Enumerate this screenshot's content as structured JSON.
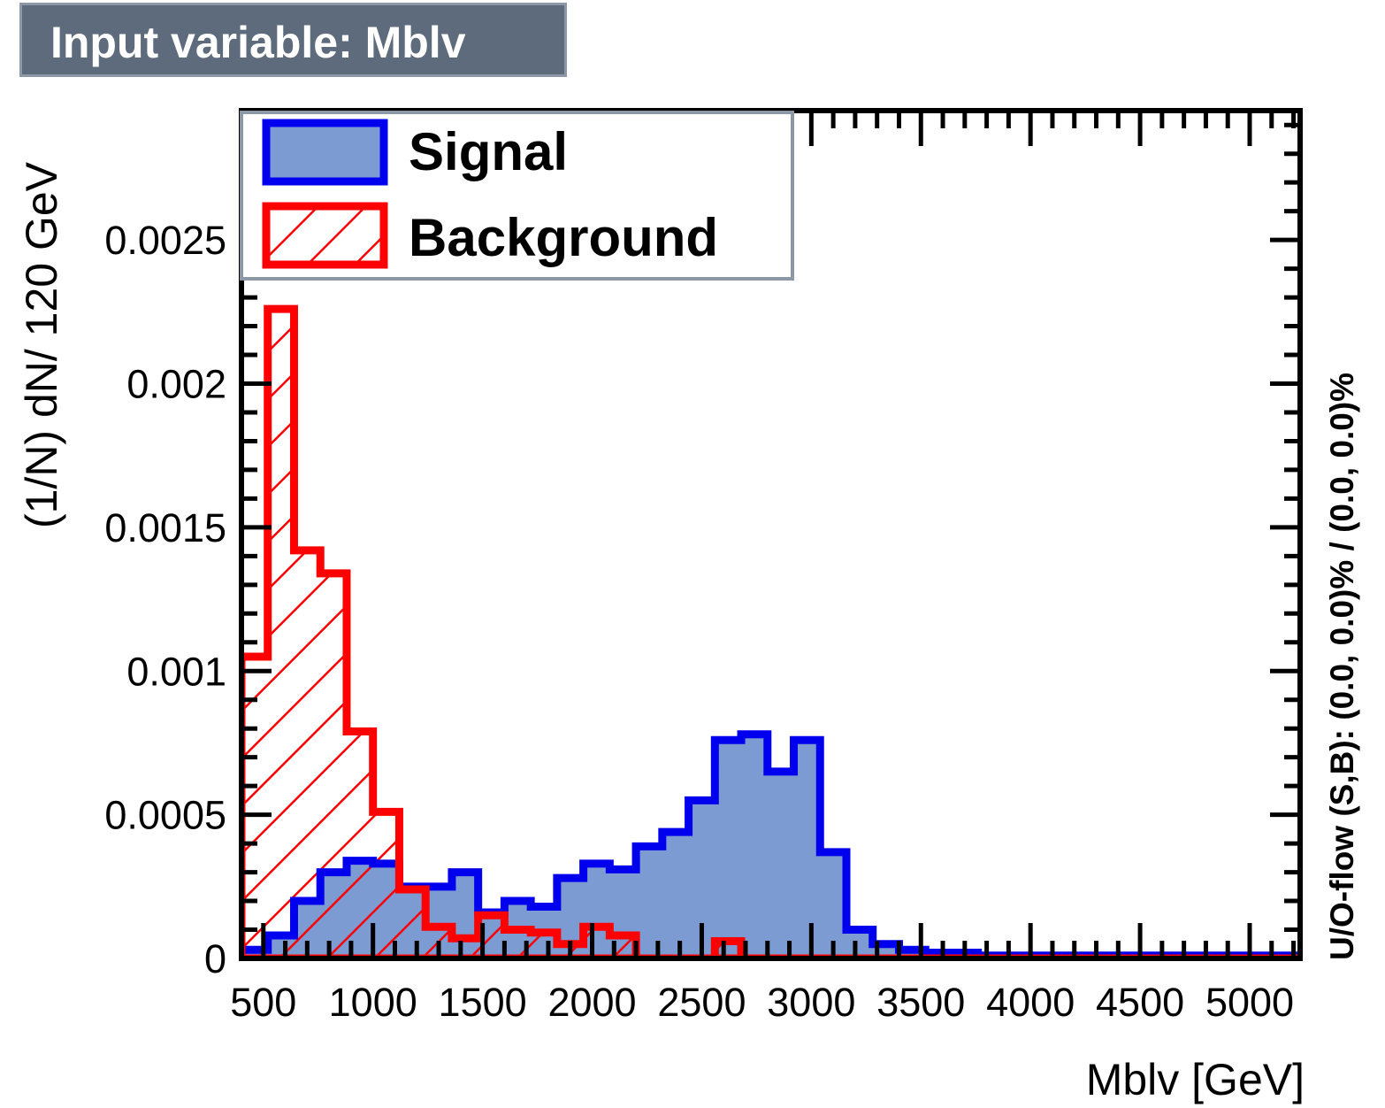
{
  "title": "Input variable: Mblv",
  "colors": {
    "signal_line": "#0000ee",
    "signal_fill": "#7b9bd2",
    "background_line": "#ff0000",
    "title_bg": "#5e6b7d"
  },
  "chart_data": {
    "type": "bar",
    "histogram": true,
    "xlabel": "Mblv  [GeV]",
    "ylabel": "(1/N) dN/ 120 GeV",
    "side_label": "U/O-flow (S,B): (0.0, 0.0)% / (0.0, 0.0)%",
    "xlim": [
      400,
      5230
    ],
    "ylim": [
      0,
      0.00295
    ],
    "bin_width": 120,
    "x_ticks": [
      500,
      1000,
      1500,
      2000,
      2500,
      3000,
      3500,
      4000,
      4500,
      5000
    ],
    "x_tick_labels": [
      "500",
      "1000",
      "1500",
      "2000",
      "2500",
      "3000",
      "3500",
      "4000",
      "4500",
      "5000"
    ],
    "y_ticks": [
      0,
      0.0005,
      0.001,
      0.0015,
      0.002,
      0.0025
    ],
    "y_tick_labels": [
      "0",
      "0.0005",
      "0.001",
      "0.0015",
      "0.002",
      "0.0025"
    ],
    "legend_position": "top-left",
    "series": [
      {
        "name": "Signal",
        "style": "filled",
        "edges": [
          400,
          520,
          640,
          760,
          880,
          1000,
          1120,
          1240,
          1360,
          1480,
          1600,
          1720,
          1840,
          1960,
          2080,
          2200,
          2320,
          2440,
          2560,
          2680,
          2800,
          2920,
          3040,
          3160,
          3280,
          3400,
          3520,
          3640,
          3760,
          3880,
          4000,
          4120,
          4240,
          4360,
          4480,
          4600,
          4720,
          4840,
          4960,
          5080,
          5230
        ],
        "values": [
          3e-05,
          8e-05,
          0.0002,
          0.0003,
          0.00034,
          0.00033,
          0.00025,
          0.00025,
          0.0003,
          0.00016,
          0.0002,
          0.00018,
          0.00028,
          0.00033,
          0.00031,
          0.00039,
          0.00044,
          0.00055,
          0.00076,
          0.00078,
          0.00065,
          0.00076,
          0.00037,
          0.0001,
          5e-05,
          3e-05,
          2e-05,
          2e-05,
          1e-05,
          1e-05,
          1e-05,
          1e-05,
          1e-05,
          1e-05,
          1e-05,
          1e-05,
          1e-05,
          1e-05,
          1e-05,
          1e-05
        ]
      },
      {
        "name": "Background",
        "style": "hatched",
        "edges": [
          400,
          520,
          640,
          760,
          880,
          1000,
          1120,
          1240,
          1360,
          1480,
          1600,
          1720,
          1840,
          1960,
          2080,
          2200,
          2320,
          2440,
          2560,
          2680,
          2800,
          2920,
          3040,
          3160,
          3280,
          3400,
          3520,
          3640,
          3760,
          3880,
          4000,
          4120,
          4240,
          4360,
          4480,
          4600,
          4720,
          4840,
          4960,
          5080,
          5230
        ],
        "values": [
          0.00105,
          0.00226,
          0.00142,
          0.00134,
          0.00079,
          0.00051,
          0.00024,
          0.00011,
          7e-05,
          0.00015,
          0.0001,
          9e-05,
          5e-05,
          0.00011,
          8e-05,
          0.0,
          0.0,
          0.0,
          6e-05,
          0.0,
          0.0,
          0.0,
          0.0,
          0.0,
          0.0,
          0.0,
          0.0,
          0.0,
          0.0,
          0.0,
          0.0,
          0.0,
          0.0,
          0.0,
          0.0,
          0.0,
          0.0,
          0.0,
          0.0,
          0.0
        ]
      }
    ]
  }
}
